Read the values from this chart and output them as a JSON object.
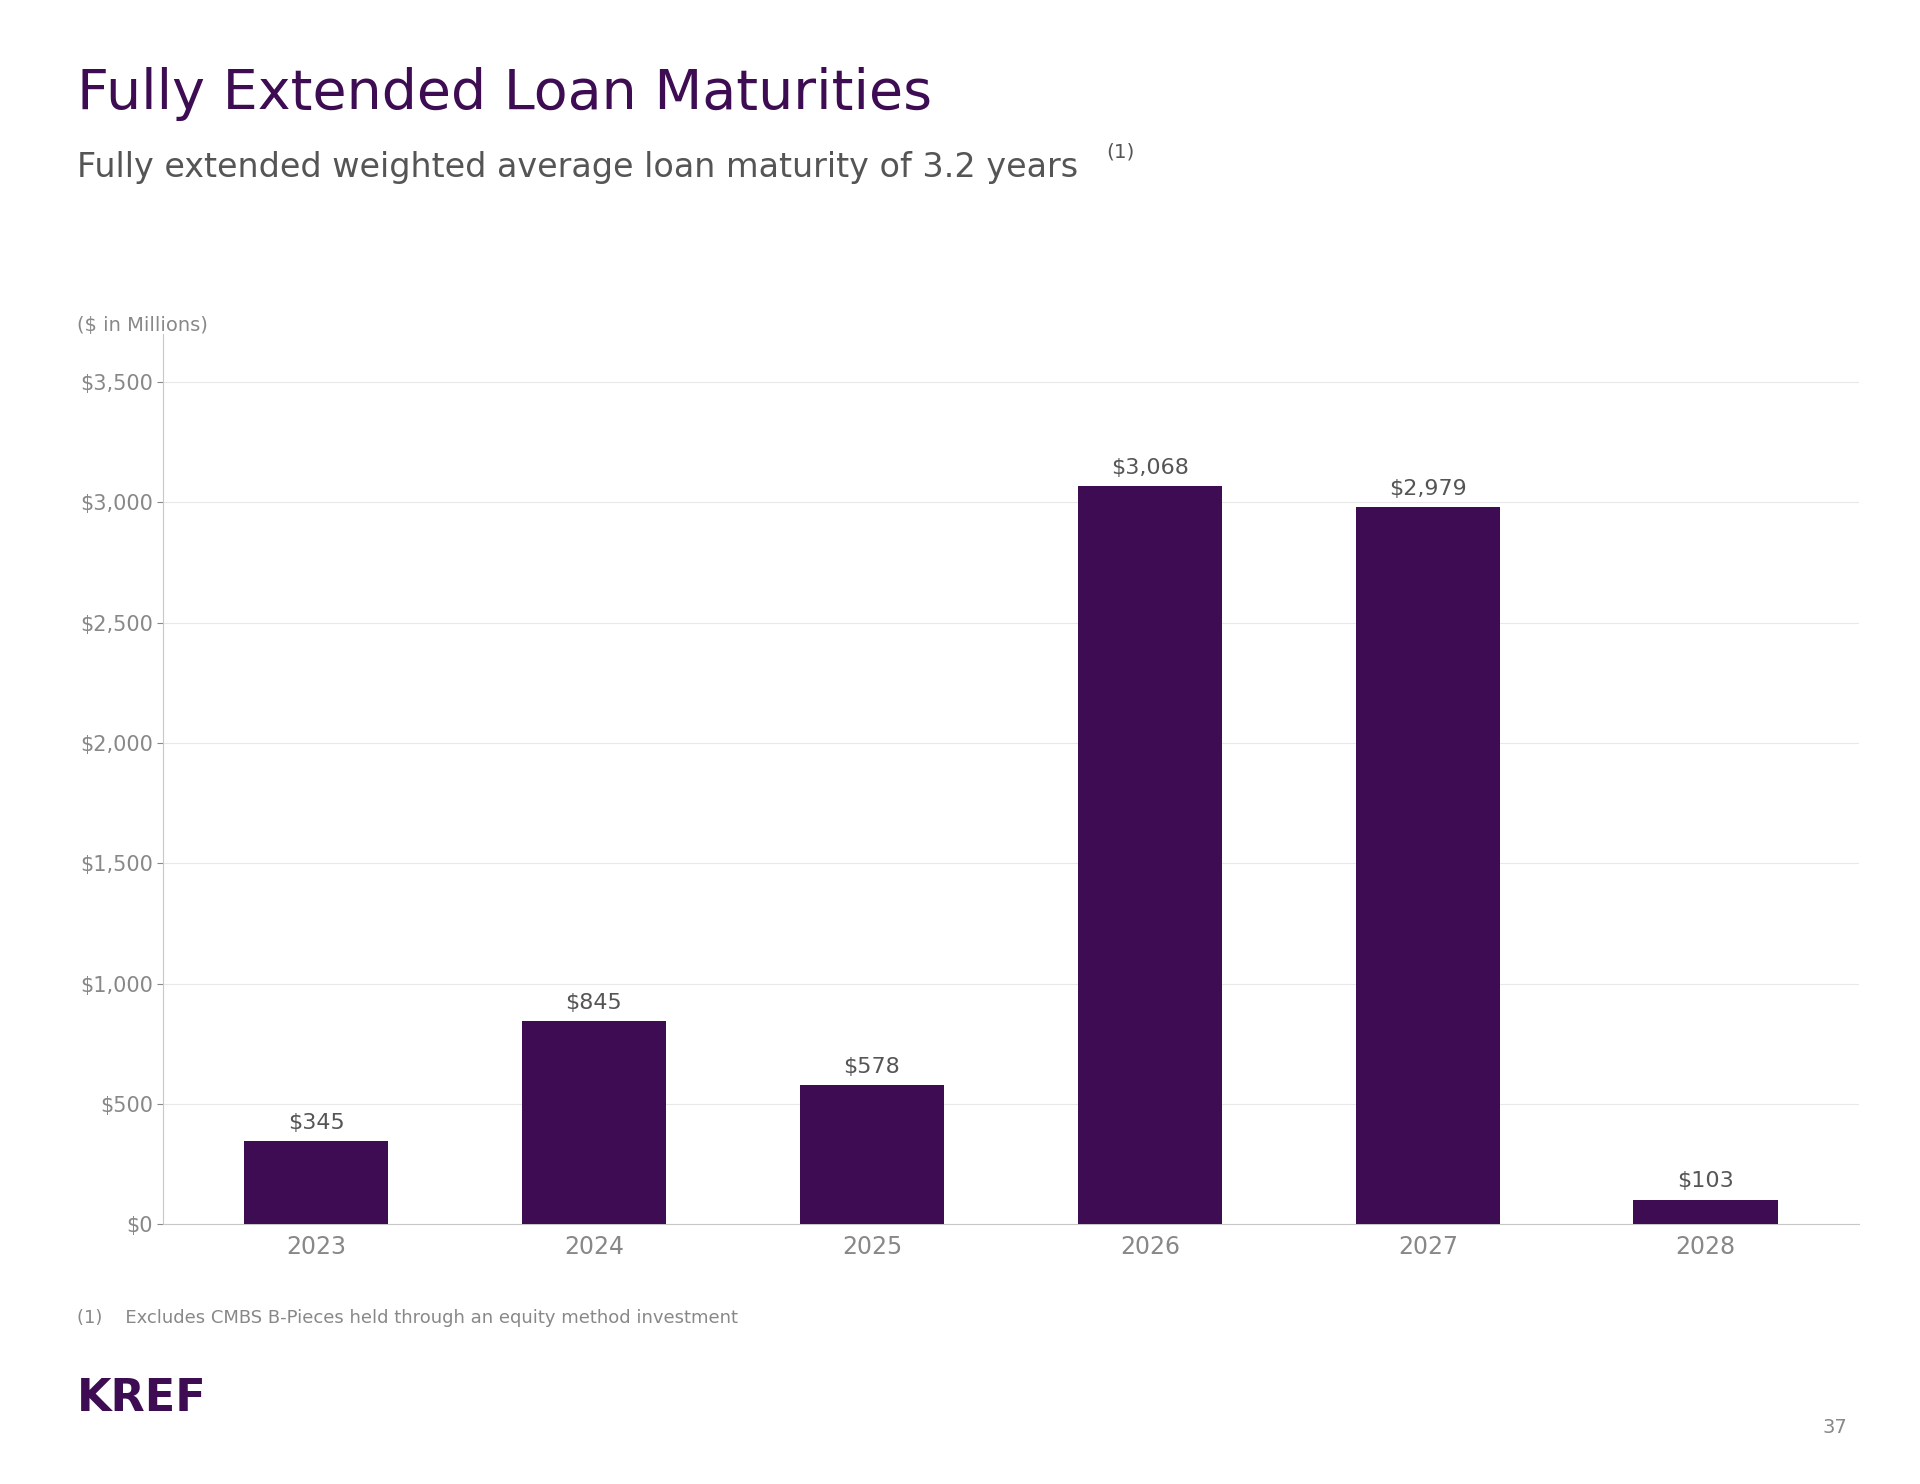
{
  "title": "Fully Extended Loan Maturities",
  "subtitle": "Fully extended weighted average loan maturity of 3.2 years",
  "subtitle_superscript": "(1)",
  "chart_header": "Fully Extended Loan Maturities",
  "chart_header_superscript": "(1)",
  "ylabel_note": "($ in Millions)",
  "categories": [
    "2023",
    "2024",
    "2025",
    "2026",
    "2027",
    "2028"
  ],
  "values": [
    345,
    845,
    578,
    3068,
    2979,
    103
  ],
  "bar_labels": [
    "$345",
    "$845",
    "$578",
    "$3,068",
    "$2,979",
    "$103"
  ],
  "bar_color": "#3d0c52",
  "header_bg_color": "#3d0c52",
  "header_text_color": "#ffffff",
  "title_color": "#3d0c52",
  "subtitle_color": "#555555",
  "axis_label_color": "#888888",
  "tick_label_color": "#888888",
  "bar_label_color": "#555555",
  "background_color": "#ffffff",
  "ylim": [
    0,
    3700
  ],
  "yticks": [
    0,
    500,
    1000,
    1500,
    2000,
    2500,
    3000,
    3500
  ],
  "ytick_labels": [
    "$0",
    "$500",
    "$1,000",
    "$1,500",
    "$2,000",
    "$2,500",
    "$3,000",
    "$3,500"
  ],
  "footnote": "(1)    Excludes CMBS B-Pieces held through an equity method investment",
  "footnote_color": "#888888",
  "logo_text": "KREF",
  "logo_color": "#3d0c52",
  "page_number": "37",
  "title_fontsize": 40,
  "subtitle_fontsize": 24,
  "chart_header_fontsize": 19,
  "bar_label_fontsize": 16,
  "ytick_fontsize": 15,
  "xtick_fontsize": 17,
  "ylabel_note_fontsize": 14,
  "footnote_fontsize": 13,
  "logo_fontsize": 32
}
